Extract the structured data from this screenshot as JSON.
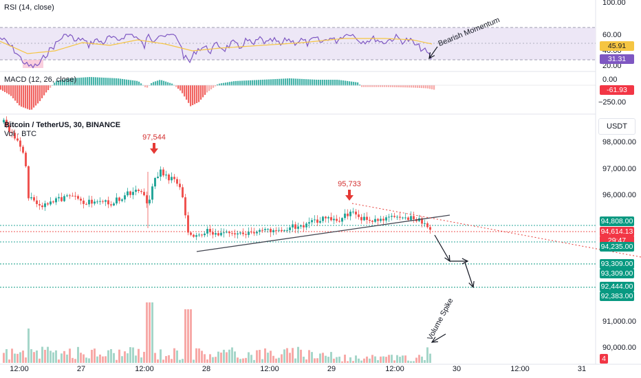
{
  "panels": {
    "rsi_title": "RSI (14, close)",
    "macd_title": "MACD (12, 26, close)",
    "main_title": "Bitcoin / TetherUS, 30, BINANCE",
    "vol_title": "Vol · BTC"
  },
  "currency_button": "USDT",
  "axis": {
    "rsi_ticks": [
      "100.00",
      "60.00",
      "40.00",
      "20.00"
    ],
    "macd_ticks": [
      "0.00",
      "−250.00"
    ],
    "price_ticks": [
      "98,000.00",
      "97,000.00",
      "96,000.00",
      "91,000.00",
      "90,000.00"
    ],
    "x_ticks": [
      "12:00",
      "27",
      "12:00",
      "28",
      "12:00",
      "29",
      "12:00",
      "30",
      "12:00",
      "31"
    ]
  },
  "badges": {
    "rsi_yellow": "45.91",
    "rsi_purple": "31.31",
    "macd_red": "-61.93",
    "p1": "94,808.00",
    "p2": "94,614.13",
    "p2b": "29:47",
    "p3": "94,235.00",
    "p4": "93,309.00",
    "p5": "93,309.00",
    "p6": "92,444.00",
    "p7": "92,383.00",
    "vol": "4"
  },
  "annotations": {
    "high_1": "97,544",
    "high_2": "95,733",
    "bearish_momentum": "Bearish Momentum",
    "volume_spike": "Volume Spike"
  },
  "colors": {
    "up": "#26a69a",
    "down": "#ef5350",
    "rsi_line": "#7e57c2",
    "rsi_ma": "#f5c542",
    "rsi_band": "#ede7f6",
    "teal_badge": "#089981",
    "red_badge": "#f23645",
    "arrow_red": "#e53935"
  },
  "chart_data": {
    "type": "candlestick",
    "symbol": "Bitcoin / TetherUS",
    "interval": "30",
    "exchange": "BINANCE",
    "x_ticks": [
      "12:00",
      "27",
      "12:00",
      "28",
      "12:00",
      "29",
      "12:00",
      "30",
      "12:00",
      "31"
    ],
    "price_axis": [
      90000,
      91000,
      96000,
      97000,
      98000
    ],
    "points_of_interest": [
      97544,
      95733
    ],
    "levels": [
      94808,
      94614.13,
      94235,
      93309,
      92444,
      92383
    ],
    "rsi": {
      "period": 14,
      "last": 31.31,
      "ma_last": 45.91,
      "bands": [
        30,
        70
      ]
    },
    "macd": {
      "fast": 12,
      "slow": 26,
      "last_hist": -61.93
    }
  }
}
